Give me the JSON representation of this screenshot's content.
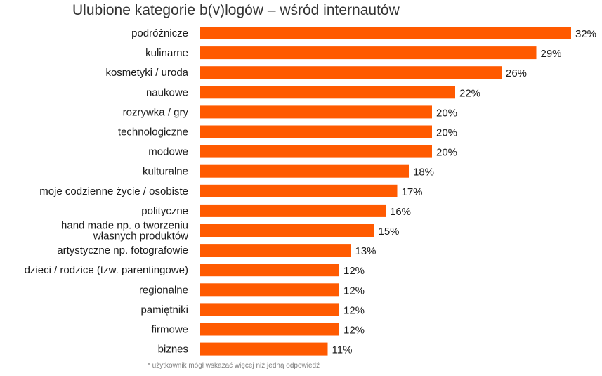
{
  "chart_data": {
    "type": "bar",
    "orientation": "horizontal",
    "title": "Ulubione kategorie b(v)logów – wśród internautów",
    "categories": [
      "podróżnicze",
      "kulinarne",
      "kosmetyki / uroda",
      "naukowe",
      "rozrywka / gry",
      "technologiczne",
      "modowe",
      "kulturalne",
      "moje codzienne życie / osobiste",
      "polityczne",
      [
        "hand made np. o tworzeniu",
        "własnych produktów"
      ],
      "artystyczne np. fotografowie",
      "dzieci / rodzice (tzw. parentingowe)",
      "regionalne",
      "pamiętniki",
      "firmowe",
      "biznes"
    ],
    "values": [
      32,
      29,
      26,
      22,
      20,
      20,
      20,
      18,
      17,
      16,
      15,
      13,
      12,
      12,
      12,
      12,
      11
    ],
    "value_suffix": "%",
    "xlabel": "",
    "ylabel": "",
    "xlim": [
      0,
      32
    ],
    "grid": false,
    "bar_color": "#ff5a00",
    "footnote": "* użytkownik mógł wskazać więcej niż jedną odpowiedź"
  }
}
